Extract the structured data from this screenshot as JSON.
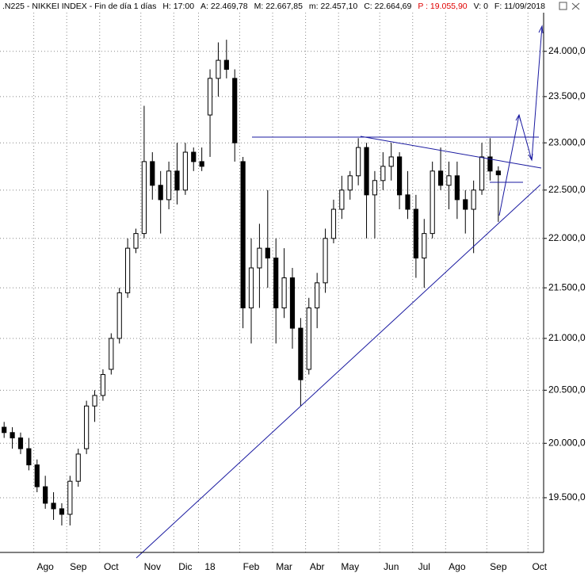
{
  "chart_data": {
    "type": "candlestick",
    "title": ".N225 - NIKKEI INDEX - Fin de día 1 días",
    "info": [
      "H: 17:00",
      "A: 22.469,78",
      "M: 22.667,85",
      "m: 22.457,10",
      "C: 22.664,69",
      "P : 19.055,90",
      "V: 0",
      "F: 11/09/2018"
    ],
    "log_scale": true,
    "grid": true,
    "color": "#000000",
    "categories": [
      null,
      null,
      null,
      null,
      null,
      "Ago",
      null,
      null,
      null,
      "Sep",
      null,
      null,
      null,
      "Oct",
      null,
      null,
      null,
      null,
      "Nov",
      null,
      null,
      null,
      "Dic",
      null,
      null,
      "18",
      null,
      null,
      null,
      null,
      "Feb",
      null,
      null,
      null,
      "Mar",
      null,
      null,
      null,
      "Abr",
      null,
      null,
      null,
      "May",
      null,
      null,
      null,
      null,
      "Jun",
      null,
      null,
      null,
      "Jul",
      null,
      null,
      null,
      "Ago",
      null,
      null,
      null,
      null,
      "Sep",
      null,
      null,
      null,
      null,
      "Oct"
    ],
    "open": [
      20150,
      20100,
      20050,
      19950,
      19800,
      19600,
      19450,
      19400,
      19350,
      19650,
      19950,
      20350,
      20450,
      20700,
      21000,
      21450,
      21900,
      22050,
      22800,
      22550,
      22400,
      22700,
      22500,
      22900,
      22800,
      23300,
      23700,
      23900,
      23700,
      22800,
      21300,
      21700,
      21900,
      21800,
      21300,
      21600,
      21100,
      20700,
      21300,
      21550,
      22000,
      22300,
      22500,
      22650,
      22950,
      22450,
      22600,
      22750,
      22850,
      22450,
      22300,
      21800,
      22050,
      22700,
      22550,
      22650,
      22400,
      22300,
      22500,
      22850,
      22700,
      null,
      null,
      null,
      null,
      null
    ],
    "high": [
      20200,
      20150,
      20100,
      20050,
      19850,
      19700,
      19550,
      19450,
      19700,
      19950,
      20400,
      20500,
      20700,
      21050,
      21500,
      22000,
      22100,
      23400,
      22900,
      22700,
      22800,
      23000,
      23000,
      22950,
      22950,
      23800,
      24100,
      24130,
      23800,
      22850,
      22000,
      22150,
      22500,
      22000,
      21900,
      21700,
      21200,
      21400,
      21650,
      22100,
      22400,
      22650,
      22700,
      23050,
      23000,
      22700,
      22900,
      23000,
      22900,
      22700,
      22450,
      22200,
      22800,
      22950,
      22800,
      22800,
      22500,
      22600,
      23000,
      23050,
      22750,
      null,
      null,
      null,
      null,
      null
    ],
    "low": [
      20050,
      19950,
      19900,
      19750,
      19550,
      19400,
      19300,
      19250,
      19250,
      19600,
      19900,
      20200,
      20400,
      20650,
      20950,
      21400,
      21850,
      22000,
      22400,
      22050,
      22300,
      22350,
      22450,
      22700,
      22700,
      22850,
      23500,
      23700,
      22800,
      21100,
      20950,
      21300,
      21500,
      20950,
      21200,
      20900,
      20350,
      20650,
      21100,
      21450,
      21950,
      22200,
      22400,
      22550,
      22000,
      22000,
      22500,
      22600,
      22300,
      22200,
      21600,
      21500,
      22000,
      22500,
      22300,
      22200,
      22050,
      21850,
      22450,
      22600,
      22170,
      null,
      null,
      null,
      null,
      null
    ],
    "close": [
      20100,
      20050,
      19950,
      19800,
      19600,
      19450,
      19400,
      19350,
      19650,
      19900,
      20350,
      20450,
      20650,
      21000,
      21450,
      21900,
      22050,
      22800,
      22550,
      22400,
      22700,
      22500,
      22900,
      22800,
      22750,
      23700,
      23900,
      23800,
      23000,
      21300,
      21700,
      21900,
      21800,
      21300,
      21600,
      21100,
      20600,
      21300,
      21550,
      22000,
      22300,
      22500,
      22650,
      22950,
      22450,
      22600,
      22750,
      22850,
      22450,
      22300,
      21800,
      22050,
      22700,
      22550,
      22650,
      22400,
      22300,
      22500,
      22850,
      22700,
      22660,
      null,
      null,
      null,
      null,
      null
    ],
    "ylim": [
      19010,
      24580
    ],
    "yticks": [
      {
        "value": 19500,
        "label": "19.500,0"
      },
      {
        "value": 20000,
        "label": "20.000,0"
      },
      {
        "value": 20500,
        "label": "20.500,0"
      },
      {
        "value": 21000,
        "label": "21.000,0"
      },
      {
        "value": 21500,
        "label": "21.500,0"
      },
      {
        "value": 22000,
        "label": "22.000,0"
      },
      {
        "value": 22500,
        "label": "22.500,0"
      },
      {
        "value": 23000,
        "label": "23.000,0"
      },
      {
        "value": 23500,
        "label": "23.500,0"
      },
      {
        "value": 24000,
        "label": "24.000,0"
      }
    ]
  }
}
